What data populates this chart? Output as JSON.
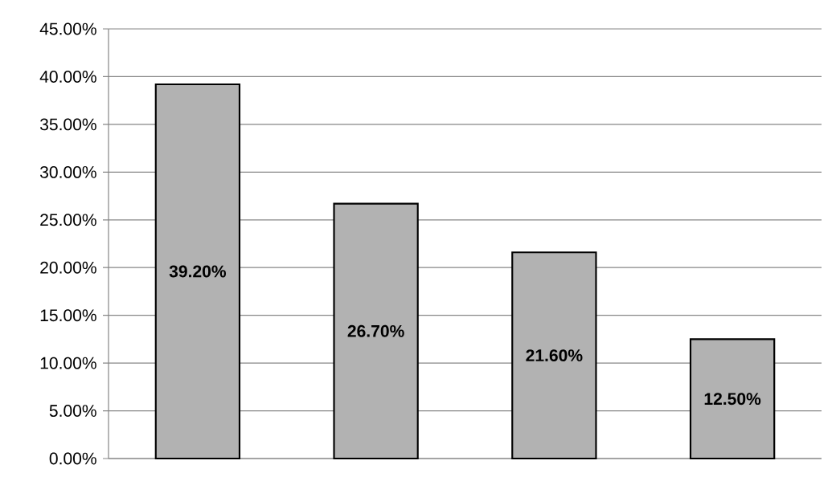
{
  "chart_data": {
    "type": "bar",
    "categories": [
      null,
      null,
      null,
      null
    ],
    "values": [
      39.2,
      26.7,
      21.6,
      12.5
    ],
    "value_labels": [
      "39.20%",
      "26.70%",
      "21.60%",
      "12.50%"
    ],
    "color": "#b2b2b2",
    "ylim": [
      0,
      45
    ],
    "yticks": [
      {
        "value": 0,
        "label": "0.00%"
      },
      {
        "value": 5,
        "label": "5.00%"
      },
      {
        "value": 10,
        "label": "10.00%"
      },
      {
        "value": 15,
        "label": "15.00%"
      },
      {
        "value": 20,
        "label": "20.00%"
      },
      {
        "value": 25,
        "label": "25.00%"
      },
      {
        "value": 30,
        "label": "30.00%"
      },
      {
        "value": 35,
        "label": "35.00%"
      },
      {
        "value": 40,
        "label": "40.00%"
      },
      {
        "value": 45,
        "label": "45.00%"
      }
    ],
    "grid": "y"
  }
}
